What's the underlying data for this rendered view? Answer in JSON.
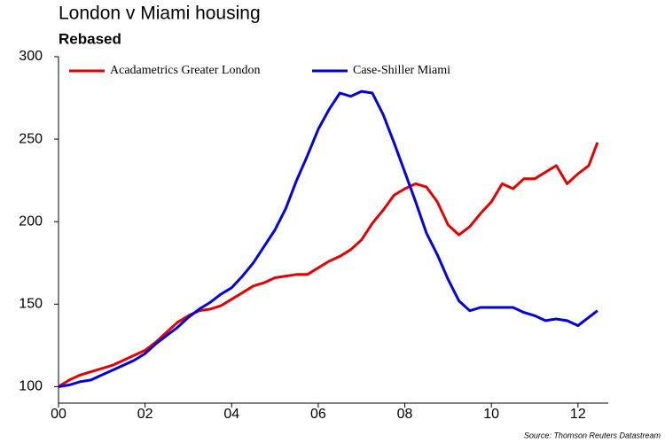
{
  "chart_data": {
    "type": "line",
    "title": "London v Miami housing",
    "subtitle": "Rebased",
    "source": "Source: Thomson Reuters Datastream",
    "x": [
      0,
      0.25,
      0.5,
      0.75,
      1,
      1.25,
      1.5,
      1.75,
      2,
      2.25,
      2.5,
      2.75,
      3,
      3.25,
      3.5,
      3.75,
      4,
      4.25,
      4.5,
      4.75,
      5,
      5.25,
      5.5,
      5.75,
      6,
      6.25,
      6.5,
      6.75,
      7,
      7.25,
      7.5,
      7.75,
      8,
      8.25,
      8.5,
      8.75,
      9,
      9.25,
      9.5,
      9.75,
      10,
      10.25,
      10.5,
      10.75,
      11,
      11.25,
      11.5,
      11.75,
      12,
      12.25,
      12.45
    ],
    "series": [
      {
        "name": "Acadametrics Greater London",
        "color": "#e00000",
        "values": [
          100,
          104,
          107,
          109,
          111,
          113,
          116,
          119,
          122,
          127,
          133,
          139,
          143,
          146,
          147,
          149,
          153,
          157,
          161,
          163,
          166,
          167,
          168,
          168,
          172,
          176,
          179,
          183,
          189,
          199,
          207,
          216,
          220,
          223,
          221,
          212,
          198,
          192,
          197,
          205,
          212,
          223,
          220,
          226,
          226,
          230,
          234,
          223,
          229,
          234,
          248
        ]
      },
      {
        "name": "Case-Shiller Miami",
        "color": "#0000dd",
        "values": [
          100,
          101,
          103,
          104,
          107,
          110,
          113,
          116,
          120,
          126,
          131,
          136,
          142,
          147,
          151,
          156,
          160,
          167,
          175,
          185,
          195,
          208,
          225,
          240,
          256,
          268,
          278,
          276,
          279,
          278,
          265,
          248,
          230,
          212,
          193,
          180,
          165,
          152,
          146,
          148,
          148,
          148,
          148,
          145,
          143,
          140,
          141,
          140,
          137,
          142,
          146
        ]
      }
    ],
    "xlim": [
      0,
      12.7
    ],
    "ylim": [
      90,
      300
    ],
    "xticks": [
      {
        "value": 0,
        "label": "00"
      },
      {
        "value": 2,
        "label": "02"
      },
      {
        "value": 4,
        "label": "04"
      },
      {
        "value": 6,
        "label": "06"
      },
      {
        "value": 8,
        "label": "08"
      },
      10,
      12
    ],
    "yticks": [
      100,
      150,
      200,
      250,
      300
    ],
    "grid": false
  }
}
